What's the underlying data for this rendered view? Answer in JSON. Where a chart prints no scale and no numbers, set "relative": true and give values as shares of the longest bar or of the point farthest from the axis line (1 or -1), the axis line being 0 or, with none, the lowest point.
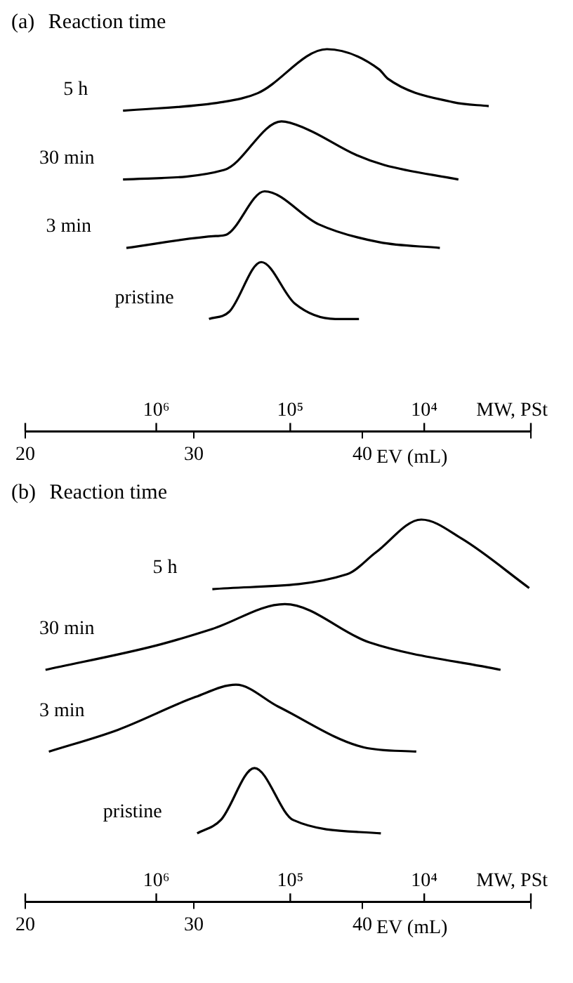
{
  "chart_data": [
    {
      "type": "line",
      "title": "(a)",
      "log": "x2",
      "legend_title": "Reaction time",
      "relative": true,
      "xlabel": "EV (mL)",
      "x2label": "MW, PSt",
      "xlim": [
        20,
        50
      ],
      "xticks": [
        20,
        30,
        40,
        {
          "value": 50,
          "label": null
        }
      ],
      "x2lim": [
        9500000,
        1600
      ],
      "x2ticks": [
        {
          "value": 1000000,
          "label": "10⁶"
        },
        {
          "value": 100000,
          "label": "10⁵"
        },
        {
          "value": 10000,
          "label": "10⁴"
        }
      ],
      "grid": false,
      "legend": false,
      "marker": "none",
      "line_style": "solid",
      "series": [
        {
          "name": "5 h",
          "color": "#000000",
          "x": [
            25.8,
            31.6,
            33.8,
            37.9,
            41.0,
            41.5,
            45.4,
            47.5
          ],
          "values": [
            0.839,
            0.861,
            0.885,
            1.0,
            0.947,
            0.923,
            0.861,
            0.851
          ]
        },
        {
          "name": "30 min",
          "color": "#000000",
          "x": [
            25.8,
            31.8,
            35.2,
            36.6,
            39.6,
            41.3,
            45.7
          ],
          "values": [
            0.659,
            0.684,
            0.811,
            0.793,
            0.724,
            0.697,
            0.659
          ]
        },
        {
          "name": "3 min",
          "color": "#000000",
          "x": [
            26.0,
            31.3,
            31.9,
            34.2,
            37.4,
            41.0,
            44.6
          ],
          "values": [
            0.48,
            0.511,
            0.514,
            0.628,
            0.542,
            0.495,
            0.48
          ]
        },
        {
          "name": "pristine",
          "color": "#000000",
          "x": [
            30.9,
            32.1,
            34.0,
            36.0,
            38.4,
            39.8
          ],
          "values": [
            0.294,
            0.313,
            0.443,
            0.334,
            0.294,
            0.294
          ]
        }
      ]
    },
    {
      "type": "line",
      "title": "(b)",
      "log": "x2",
      "legend_title": "Reaction time",
      "relative": true,
      "xlabel": "EV (mL)",
      "x2label": "MW, PSt",
      "xlim": [
        20,
        50
      ],
      "xticks": [
        20,
        30,
        40,
        {
          "value": 50,
          "label": null
        }
      ],
      "x2lim": [
        9500000,
        1600
      ],
      "x2ticks": [
        {
          "value": 1000000,
          "label": "10⁶"
        },
        {
          "value": 100000,
          "label": "10⁵"
        },
        {
          "value": 10000,
          "label": "10⁴"
        }
      ],
      "grid": false,
      "legend": false,
      "marker": "none",
      "line_style": "solid",
      "series": [
        {
          "name": "5 h",
          "color": "#000000",
          "x": [
            31.1,
            39.1,
            40.8,
            43.5,
            45.9,
            49.9
          ],
          "values": [
            0.818,
            0.857,
            0.914,
            1.0,
            0.95,
            0.821
          ]
        },
        {
          "name": "30 min",
          "color": "#000000",
          "x": [
            21.2,
            27.8,
            31.1,
            35.4,
            40.4,
            48.2
          ],
          "values": [
            0.607,
            0.671,
            0.714,
            0.779,
            0.679,
            0.607
          ]
        },
        {
          "name": "3 min",
          "color": "#000000",
          "x": [
            21.4,
            25.5,
            30.1,
            32.5,
            35.0,
            40.1,
            43.2
          ],
          "values": [
            0.393,
            0.45,
            0.536,
            0.568,
            0.511,
            0.404,
            0.393
          ]
        },
        {
          "name": "pristine",
          "color": "#000000",
          "x": [
            30.2,
            31.6,
            33.6,
            35.9,
            41.1
          ],
          "values": [
            0.179,
            0.214,
            0.35,
            0.214,
            0.179
          ]
        }
      ]
    }
  ]
}
